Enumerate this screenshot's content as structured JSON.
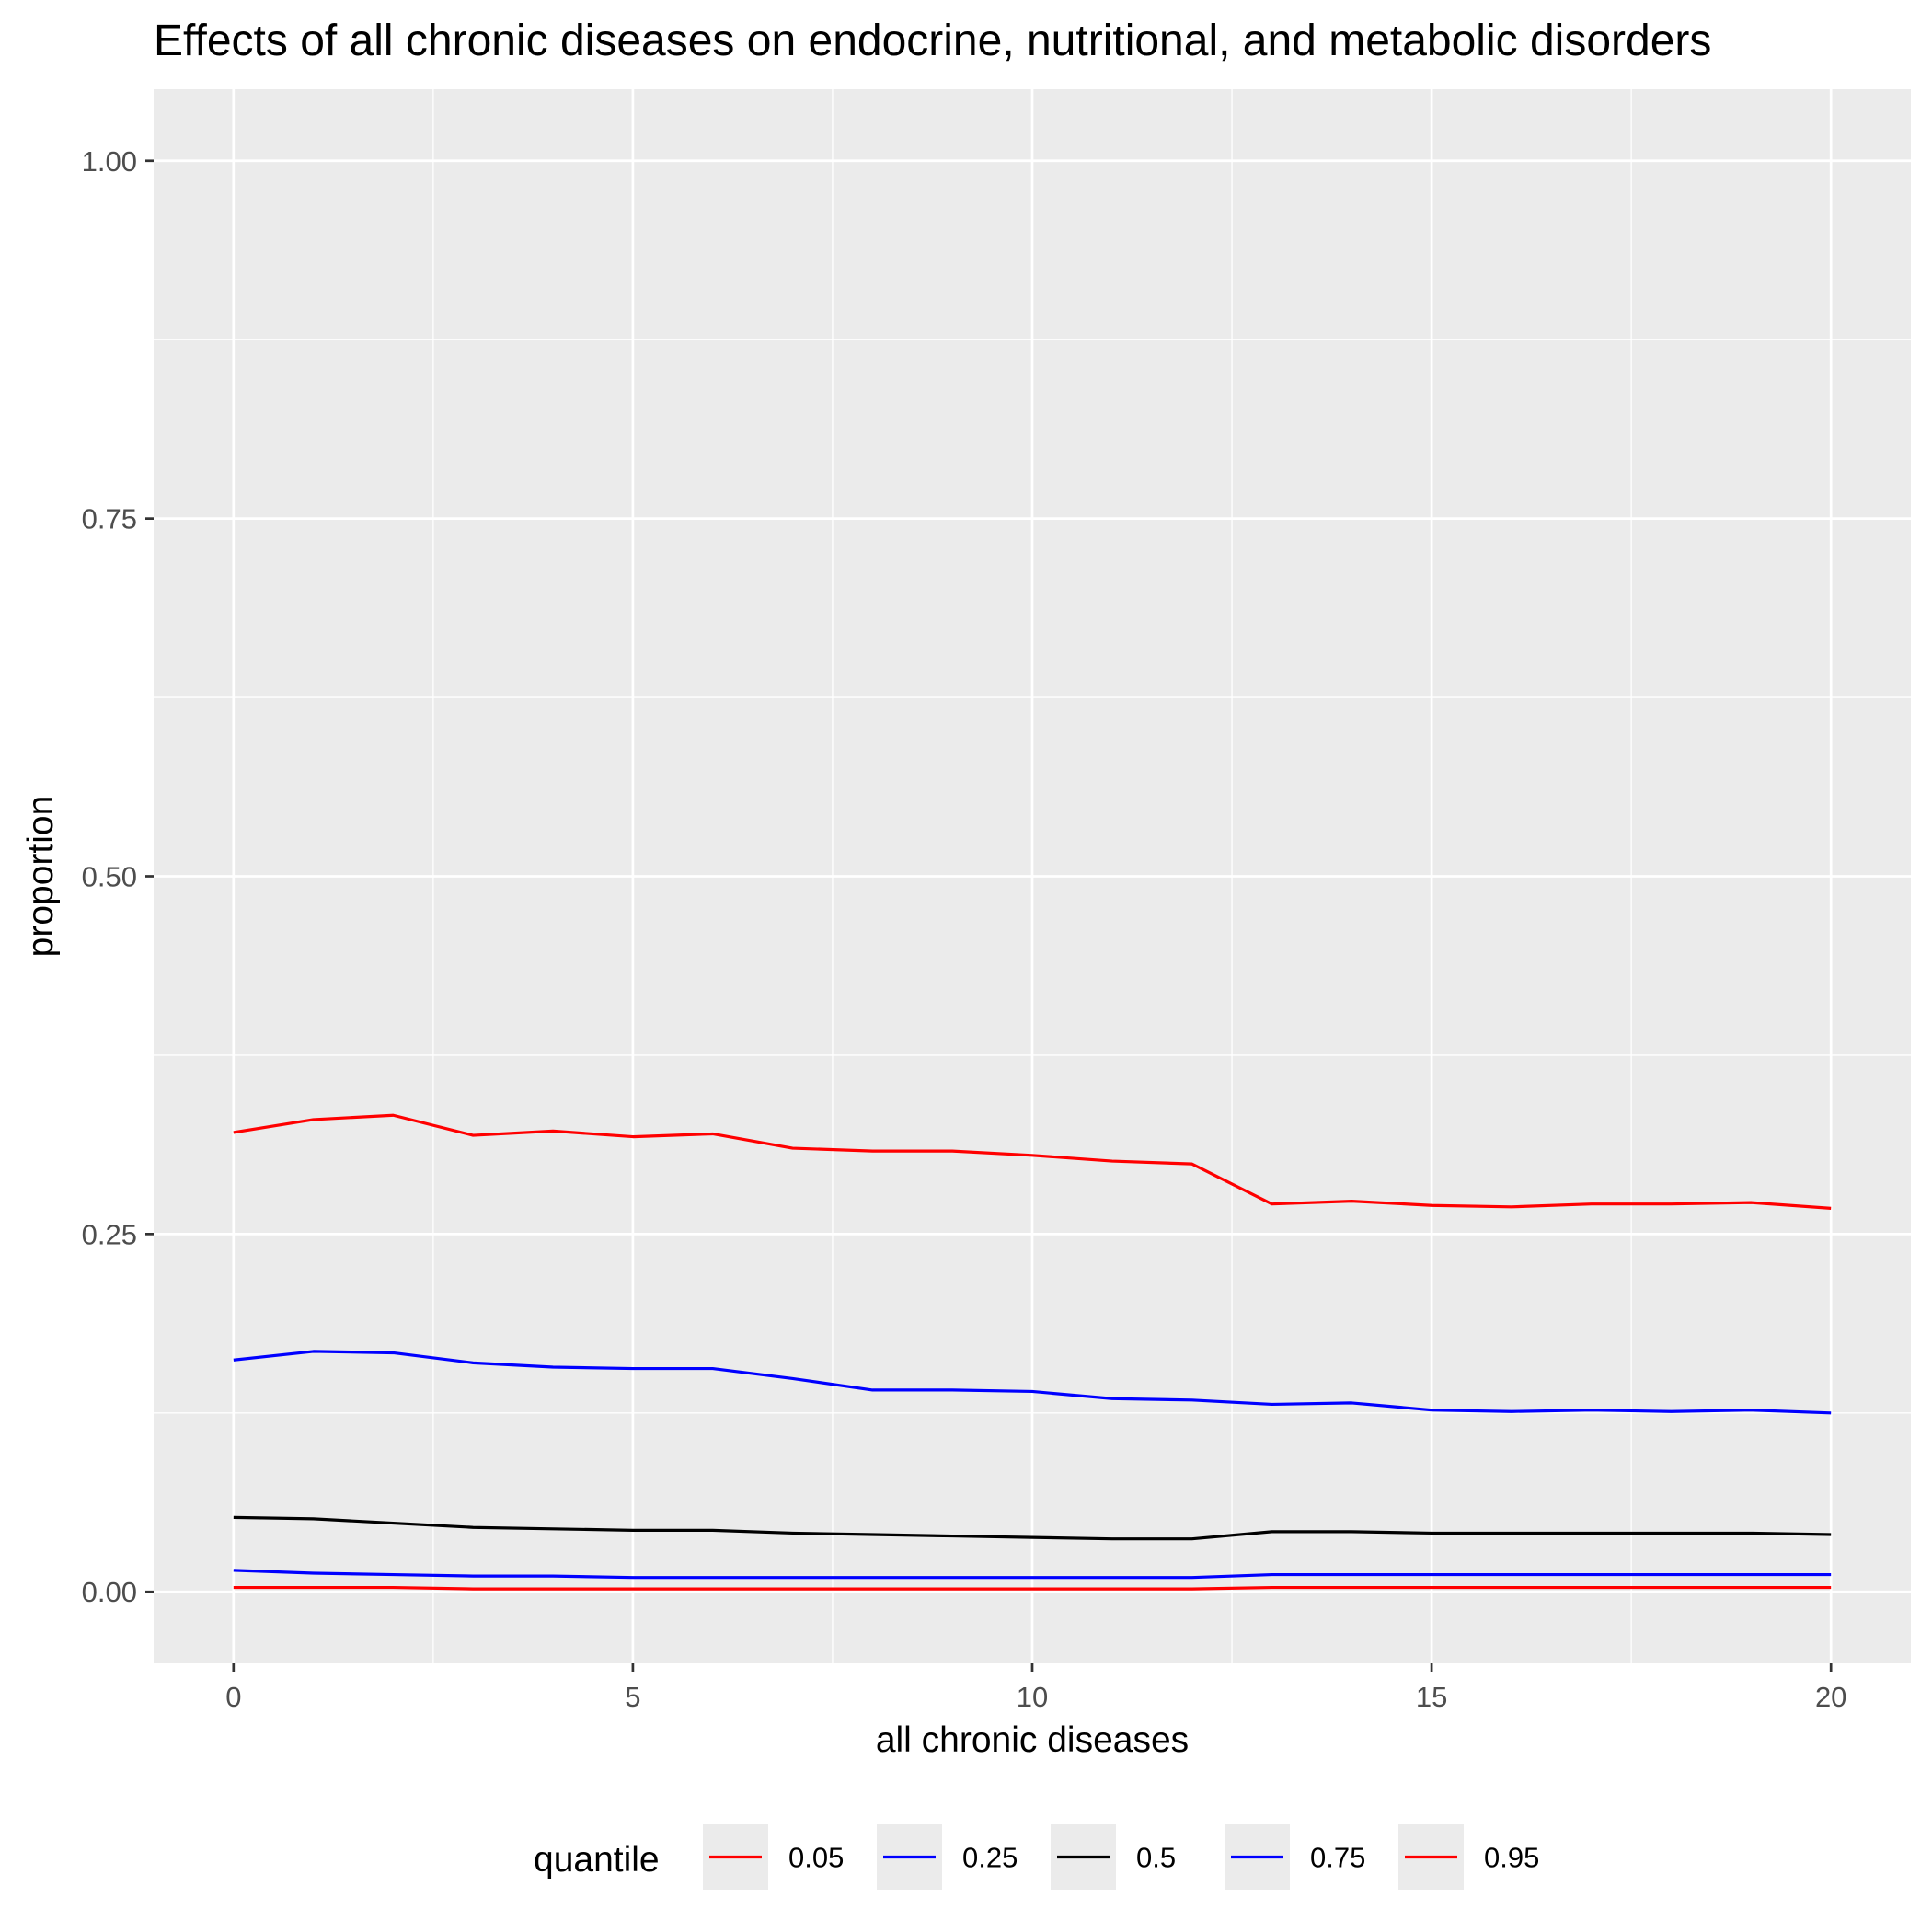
{
  "chart_data": {
    "type": "line",
    "title": "Effects of all chronic diseases on endocrine, nutritional, and metabolic disorders",
    "xlabel": "all chronic diseases",
    "ylabel": "proportion",
    "xlim": [
      -1,
      21
    ],
    "ylim": [
      -0.05,
      1.05
    ],
    "x_ticks": [
      0,
      5,
      10,
      15,
      20
    ],
    "x_tick_labels": [
      "0",
      "5",
      "10",
      "15",
      "20"
    ],
    "y_ticks": [
      0,
      0.25,
      0.5,
      0.75,
      1.0
    ],
    "y_tick_labels": [
      "0.00",
      "0.25",
      "0.50",
      "0.75",
      "1.00"
    ],
    "grid": true,
    "legend_position": "bottom",
    "legend_title": "quantile",
    "x": [
      0,
      1,
      2,
      3,
      4,
      5,
      6,
      7,
      8,
      9,
      10,
      11,
      12,
      13,
      14,
      15,
      16,
      17,
      18,
      19,
      20
    ],
    "series": [
      {
        "name": "0.05",
        "color": "#ff0000",
        "values": [
          0.003,
          0.003,
          0.003,
          0.002,
          0.002,
          0.002,
          0.002,
          0.002,
          0.002,
          0.002,
          0.002,
          0.002,
          0.002,
          0.003,
          0.003,
          0.003,
          0.003,
          0.003,
          0.003,
          0.003,
          0.003
        ]
      },
      {
        "name": "0.25",
        "color": "#0000ff",
        "values": [
          0.015,
          0.013,
          0.012,
          0.011,
          0.011,
          0.01,
          0.01,
          0.01,
          0.01,
          0.01,
          0.01,
          0.01,
          0.01,
          0.012,
          0.012,
          0.012,
          0.012,
          0.012,
          0.012,
          0.012,
          0.012
        ]
      },
      {
        "name": "0.5",
        "color": "#000000",
        "values": [
          0.052,
          0.051,
          0.048,
          0.045,
          0.044,
          0.043,
          0.043,
          0.041,
          0.04,
          0.039,
          0.038,
          0.037,
          0.037,
          0.042,
          0.042,
          0.041,
          0.041,
          0.041,
          0.041,
          0.041,
          0.04
        ]
      },
      {
        "name": "0.75",
        "color": "#0000ff",
        "values": [
          0.162,
          0.168,
          0.167,
          0.16,
          0.157,
          0.156,
          0.156,
          0.149,
          0.141,
          0.141,
          0.14,
          0.135,
          0.134,
          0.131,
          0.132,
          0.127,
          0.126,
          0.127,
          0.126,
          0.127,
          0.125
        ]
      },
      {
        "name": "0.95",
        "color": "#ff0000",
        "values": [
          0.321,
          0.33,
          0.333,
          0.319,
          0.322,
          0.318,
          0.32,
          0.31,
          0.308,
          0.308,
          0.305,
          0.301,
          0.299,
          0.271,
          0.273,
          0.27,
          0.269,
          0.271,
          0.271,
          0.272,
          0.268
        ]
      }
    ]
  }
}
